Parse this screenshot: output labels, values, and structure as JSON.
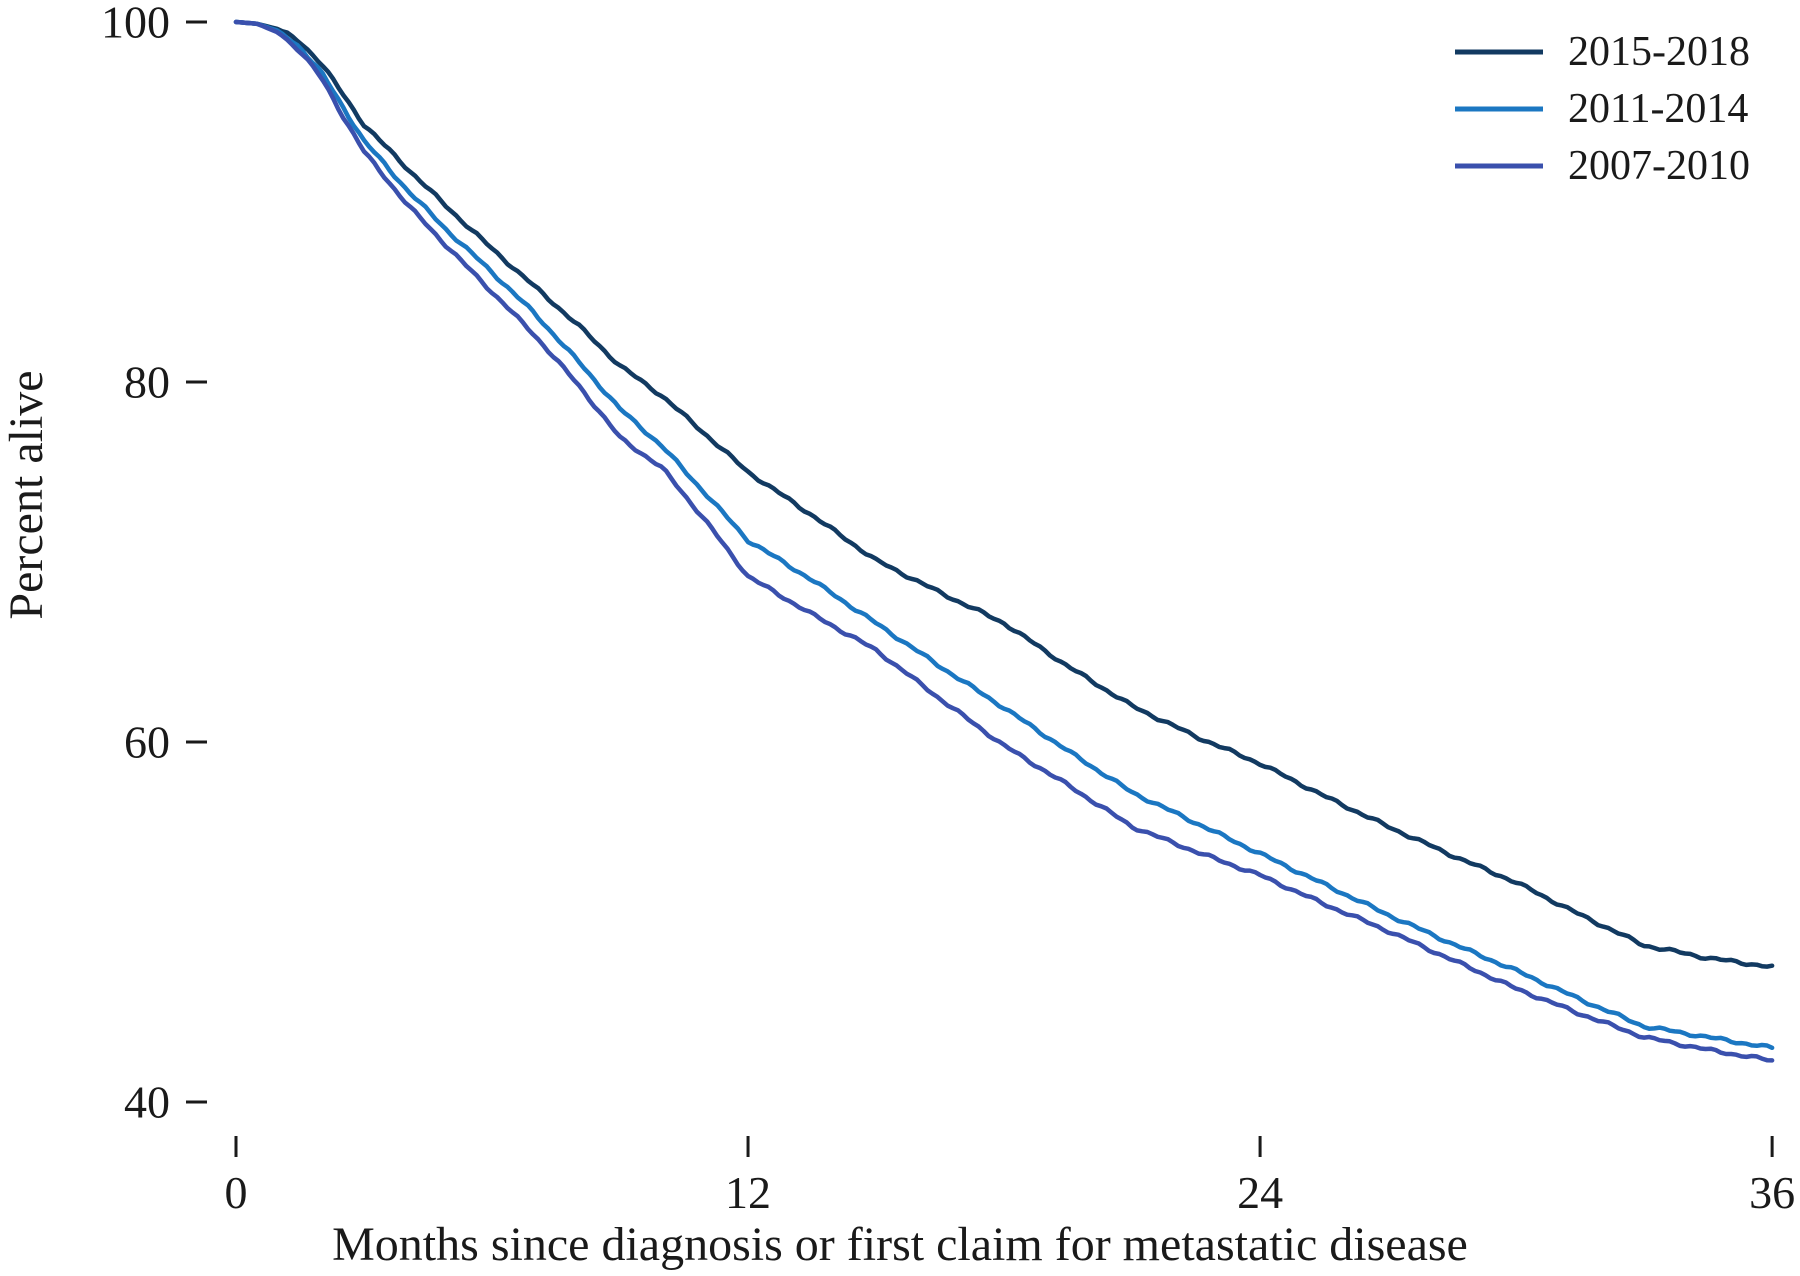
{
  "chart_data": {
    "type": "line",
    "title": "",
    "xlabel": "Months since diagnosis or first claim for metastatic disease",
    "ylabel": "Percent alive",
    "xlim": [
      0,
      36
    ],
    "ylim": [
      40,
      100
    ],
    "x_ticks": [
      0,
      12,
      24,
      36
    ],
    "y_ticks": [
      40,
      60,
      80,
      100
    ],
    "grid": false,
    "legend_position": "top-right",
    "x": [
      0,
      0.5,
      1,
      1.5,
      2,
      2.5,
      3,
      4,
      5,
      6,
      7,
      8,
      9,
      10,
      11,
      12,
      13.5,
      15,
      16.5,
      18,
      19.5,
      21,
      22.5,
      24,
      25.5,
      27,
      28.5,
      30,
      31.5,
      33,
      34.5,
      36
    ],
    "series": [
      {
        "name": "2015-2018",
        "color": "#123a61",
        "values": [
          100,
          99.9,
          99.6,
          98.9,
          97.7,
          96.0,
          94.3,
          91.9,
          89.6,
          87.4,
          85.3,
          83.2,
          80.9,
          79.2,
          77.1,
          75.0,
          72.6,
          70.1,
          68.3,
          66.6,
          64.2,
          62.0,
          60.3,
          58.8,
          57.0,
          55.3,
          53.7,
          52.2,
          50.4,
          48.7,
          48.0,
          47.5
        ]
      },
      {
        "name": "2011-2014",
        "color": "#1b77c2",
        "values": [
          100,
          99.9,
          99.5,
          98.6,
          97.2,
          95.3,
          93.4,
          90.7,
          88.3,
          86.1,
          83.8,
          81.2,
          78.5,
          76.4,
          73.8,
          71.2,
          69.0,
          66.6,
          64.2,
          61.9,
          59.5,
          57.2,
          55.5,
          53.8,
          52.1,
          50.4,
          48.8,
          47.3,
          45.7,
          44.2,
          43.6,
          43.0
        ]
      },
      {
        "name": "2007-2010",
        "color": "#3a50ad",
        "values": [
          100,
          99.9,
          99.4,
          98.4,
          96.9,
          94.8,
          92.8,
          89.9,
          87.4,
          85.0,
          82.6,
          79.9,
          76.9,
          75.2,
          72.3,
          69.2,
          67.1,
          65.1,
          62.4,
          59.8,
          57.6,
          55.3,
          53.9,
          52.6,
          51.0,
          49.5,
          47.9,
          46.3,
          44.9,
          43.6,
          42.9,
          42.3
        ]
      }
    ]
  },
  "colors": {
    "text": "#1a1a1a",
    "background": "#ffffff"
  }
}
